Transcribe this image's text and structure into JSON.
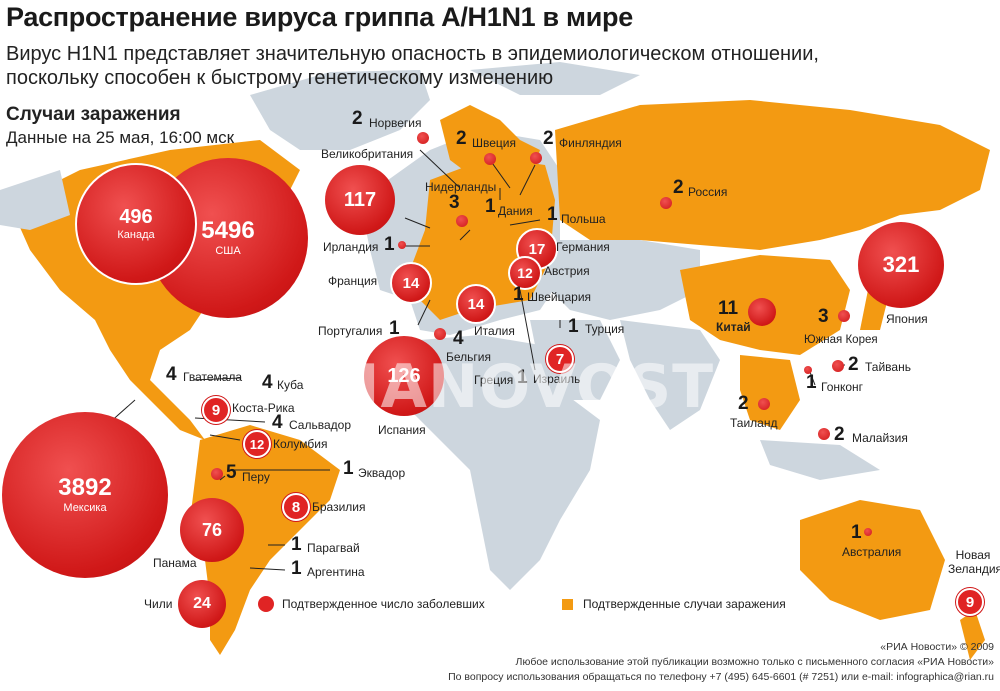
{
  "header": {
    "title": "Распространение вируса гриппа A/H1N1 в мире",
    "subtitle_line1": "Вирус H1N1 представляет значительную опасность в эпидемиологическом отношении,",
    "subtitle_line2": "поскольку способен к быстрому генетическому изменению",
    "cases_title": "Случаи заражения",
    "cases_date": "Данные на 25 мая, 16:00 мск"
  },
  "big_bubbles": {
    "usa": {
      "value": "5496",
      "country": "США"
    },
    "canada": {
      "value": "496",
      "country": "Канада"
    },
    "mexico": {
      "value": "3892",
      "country": "Мексика"
    },
    "spain": {
      "value": "126",
      "country": "Испания"
    },
    "uk": {
      "value": "117",
      "country": "Великобритания"
    },
    "japan": {
      "value": "321",
      "country": "Япония"
    },
    "china": {
      "value": "11",
      "country": "Китай"
    },
    "panama": {
      "value": "76",
      "country": "Панама"
    },
    "chile": {
      "value": "24",
      "country": "Чили"
    },
    "germany": {
      "value": "17",
      "country": "Германия"
    },
    "france": {
      "value": "14",
      "country": "Франция"
    },
    "italy": {
      "value": "14",
      "country": "Италия"
    },
    "austria": {
      "value": "12",
      "country": "Австрия"
    }
  },
  "small_bubbles": {
    "costa_rica": {
      "value": "9",
      "country": "Коста-Рика"
    },
    "colombia": {
      "value": "12",
      "country": "Колумбия"
    },
    "brazil": {
      "value": "8",
      "country": "Бразилия"
    },
    "israel": {
      "value": "7",
      "country": "Израиль"
    },
    "new_zealand": {
      "value": "9",
      "country": "Новая Зеландия"
    }
  },
  "countries": {
    "norway": {
      "value": "2",
      "name": "Норвегия"
    },
    "sweden": {
      "value": "2",
      "name": "Швеция"
    },
    "finland": {
      "value": "2",
      "name": "Финляндия"
    },
    "netherlands": {
      "value": "3",
      "name": "Нидерланды"
    },
    "denmark": {
      "value": "1",
      "name": "Дания"
    },
    "poland": {
      "value": "1",
      "name": "Польша"
    },
    "russia": {
      "value": "2",
      "name": "Россия"
    },
    "ireland": {
      "value": "1",
      "name": "Ирландия"
    },
    "switzerland": {
      "value": "1",
      "name": "Швейцария"
    },
    "portugal": {
      "value": "1",
      "name": "Португалия"
    },
    "belgium": {
      "value": "4",
      "name": "Бельгия"
    },
    "turkey": {
      "value": "1",
      "name": "Турция"
    },
    "greece": {
      "value": "1",
      "name": "Греция"
    },
    "south_korea": {
      "value": "3",
      "name": "Южная Корея"
    },
    "taiwan": {
      "value": "2",
      "name": "Тайвань"
    },
    "hong_kong": {
      "value": "1",
      "name": "Гонконг"
    },
    "thailand": {
      "value": "2",
      "name": "Таиланд"
    },
    "malaysia": {
      "value": "2",
      "name": "Малайзия"
    },
    "australia": {
      "value": "1",
      "name": "Австралия"
    },
    "guatemala": {
      "value": "4",
      "name": "Гватемала"
    },
    "cuba": {
      "value": "4",
      "name": "Куба"
    },
    "salvador": {
      "value": "4",
      "name": "Сальвадор"
    },
    "peru": {
      "value": "5",
      "name": "Перу"
    },
    "ecuador": {
      "value": "1",
      "name": "Эквадор"
    },
    "paraguay": {
      "value": "1",
      "name": "Парагвай"
    },
    "argentina": {
      "value": "1",
      "name": "Аргентина"
    }
  },
  "legend": {
    "confirmed_count": "Подтвержденное число заболевших",
    "confirmed_cases": "Подтвержденные случаи заражения"
  },
  "colors": {
    "affected": "#f39a12",
    "unaffected": "#cdd6de",
    "bubble": "#d01818"
  },
  "watermark": "RIANOVOSTI",
  "footer": {
    "copyright": "«РИА Новости» © 2009",
    "line1": "Любое использование этой публикации возможно только с письменного согласия «РИА Новости»",
    "line2": "По вопросу использования обращаться по телефону +7 (495) 645-6601 (# 7251) или e-mail: infographica@rian.ru"
  }
}
